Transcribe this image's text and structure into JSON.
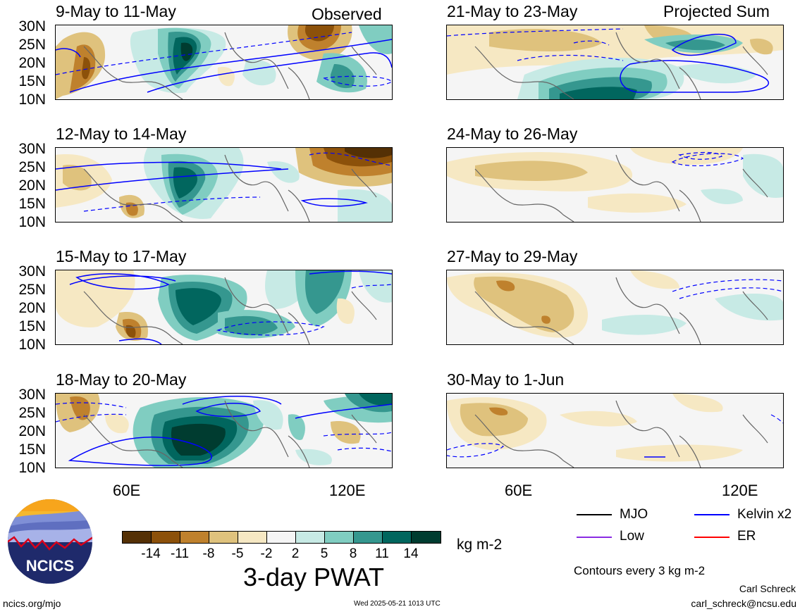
{
  "header": {
    "left_label": "Observed",
    "right_label": "Projected Sum"
  },
  "panels": {
    "observed": [
      {
        "period": "9-May to 11-May"
      },
      {
        "period": "12-May to 14-May"
      },
      {
        "period": "15-May to 17-May"
      },
      {
        "period": "18-May to 20-May"
      }
    ],
    "projected": [
      {
        "period": "21-May to 23-May"
      },
      {
        "period": "24-May to 26-May"
      },
      {
        "period": "27-May to 29-May"
      },
      {
        "period": "30-May to 1-Jun"
      }
    ]
  },
  "axes": {
    "lat_labels": [
      "30N",
      "25N",
      "20N",
      "15N",
      "10N"
    ],
    "lon_labels": [
      "60E",
      "120E"
    ]
  },
  "colorbar": {
    "labels": [
      "-14",
      "-11",
      "-8",
      "-5",
      "-2",
      "2",
      "5",
      "8",
      "11",
      "14"
    ],
    "colors": [
      "#543005",
      "#8c510a",
      "#bf812d",
      "#dfc27d",
      "#f6e8c3",
      "#f5f5f5",
      "#c7eae5",
      "#80cdc1",
      "#35978f",
      "#01665e",
      "#003c30"
    ],
    "units": "kg m-2",
    "title": "3-day PWAT"
  },
  "legend": {
    "items": [
      {
        "label": "MJO",
        "color": "#000000"
      },
      {
        "label": "Kelvin x2",
        "color": "#0000ff"
      },
      {
        "label": "Low",
        "color": "#8a2be2"
      },
      {
        "label": "ER",
        "color": "#ff0000"
      }
    ],
    "contour_note": "Contours every 3 kg m-2"
  },
  "footer": {
    "logo_text": "NCICS",
    "url": "ncics.org/mjo",
    "timestamp": "Wed 2025-05-21 1013 UTC",
    "author": "Carl Schreck",
    "email": "carl_schreck@ncsu.edu"
  }
}
